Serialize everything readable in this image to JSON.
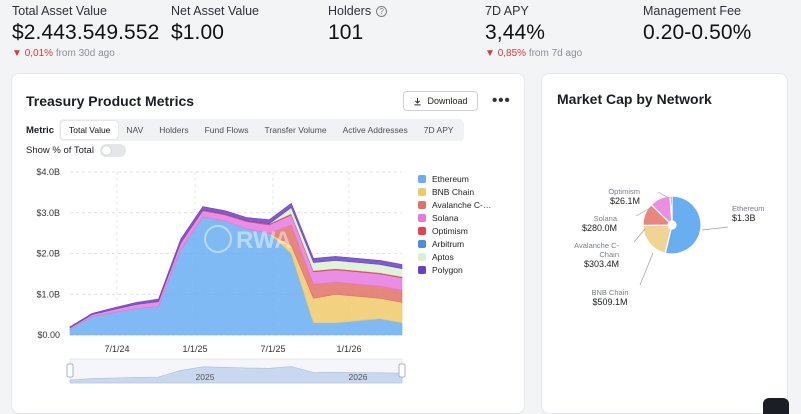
{
  "stats": [
    {
      "label": "Total Asset Value",
      "value": "$2.443.549.552",
      "change": "0,01%",
      "period": "from 30d ago"
    },
    {
      "label": "Net Asset Value",
      "value": "$1.00"
    },
    {
      "label": "Holders",
      "value": "101",
      "info_icon": "info-icon"
    },
    {
      "label": "7D APY",
      "value": "3,44%",
      "change": "0,85%",
      "period": "from 7d ago"
    },
    {
      "label": "Management Fee",
      "value": "0.20-0.50%"
    }
  ],
  "metrics_card": {
    "title": "Treasury Product Metrics",
    "download_label": "Download",
    "more_label": "•••",
    "metric_label": "Metric",
    "tabs": [
      "Total Value",
      "NAV",
      "Holders",
      "Fund Flows",
      "Transfer Volume",
      "Active Addresses",
      "7D APY"
    ],
    "active_tab": "Total Value",
    "toggle_label": "Show % of Total",
    "toggle_on": false,
    "watermark": "RWA"
  },
  "network_card": {
    "title": "Market Cap by Network"
  },
  "colors": {
    "negative": "#d93a3a",
    "accent_blue": "#6aaef2"
  },
  "chart_data": [
    {
      "type": "area",
      "stacked": true,
      "y_ticks": [
        "$0.00",
        "$1.0B",
        "$2.0B",
        "$3.0B",
        "$4.0B"
      ],
      "ylim": [
        0,
        4
      ],
      "x_ticks": [
        "7/1/24",
        "1/1/25",
        "7/1/25",
        "1/1/26"
      ],
      "range_labels": [
        "2025",
        "2026"
      ],
      "legend_position": "right",
      "x": [
        "2024-01",
        "2024-04",
        "2024-07",
        "2024-10",
        "2025-01",
        "2025-02",
        "2025-03",
        "2025-05",
        "2025-07",
        "2025-09",
        "2025-10",
        "2025-11",
        "2025-12",
        "2026-01",
        "2026-02",
        "2026-03"
      ],
      "series": [
        {
          "name": "Ethereum",
          "color": "#6aaef2",
          "values": [
            0.15,
            0.45,
            0.55,
            0.65,
            0.7,
            2.1,
            2.9,
            2.8,
            2.6,
            2.5,
            2.0,
            0.3,
            0.3,
            0.35,
            0.4,
            0.3
          ]
        },
        {
          "name": "BNB Chain",
          "color": "#f0c96b",
          "values": [
            0,
            0,
            0,
            0,
            0,
            0,
            0,
            0,
            0,
            0,
            0.2,
            0.6,
            0.7,
            0.6,
            0.5,
            0.5
          ]
        },
        {
          "name": "Avalanche C-Chain",
          "color": "#e07266",
          "values": [
            0,
            0,
            0,
            0,
            0,
            0,
            0,
            0,
            0,
            0,
            0.5,
            0.35,
            0.3,
            0.3,
            0.3,
            0.3
          ]
        },
        {
          "name": "Solana",
          "color": "#e679e0",
          "values": [
            0.03,
            0.05,
            0.08,
            0.1,
            0.12,
            0.15,
            0.15,
            0.15,
            0.18,
            0.2,
            0.25,
            0.3,
            0.3,
            0.3,
            0.3,
            0.3
          ]
        },
        {
          "name": "Optimism",
          "color": "#e8414b",
          "values": [
            0,
            0,
            0,
            0,
            0,
            0.02,
            0.02,
            0.02,
            0.02,
            0.03,
            0.03,
            0.03,
            0.03,
            0.03,
            0.03,
            0.03
          ]
        },
        {
          "name": "Arbitrum",
          "color": "#4c8fd9",
          "values": [
            0,
            0,
            0,
            0,
            0,
            0,
            0,
            0,
            0,
            0,
            0,
            0,
            0,
            0,
            0,
            0
          ]
        },
        {
          "name": "Aptos",
          "color": "#d8f2cf",
          "values": [
            0,
            0,
            0,
            0,
            0,
            0,
            0,
            0,
            0,
            0,
            0.15,
            0.2,
            0.2,
            0.2,
            0.2,
            0.2
          ]
        },
        {
          "name": "Polygon",
          "color": "#6a3fc7",
          "values": [
            0.02,
            0.03,
            0.04,
            0.05,
            0.06,
            0.08,
            0.08,
            0.08,
            0.08,
            0.1,
            0.1,
            0.1,
            0.1,
            0.1,
            0.1,
            0.1
          ]
        }
      ]
    },
    {
      "type": "pie",
      "donut": true,
      "slices": [
        {
          "name": "Ethereum",
          "label": "Ethereum",
          "value_label": "$1.3B",
          "value": 1300,
          "color": "#6aaef2"
        },
        {
          "name": "BNB Chain",
          "label": "BNB Chain",
          "value_label": "$509.1M",
          "value": 509.1,
          "color": "#f0d493"
        },
        {
          "name": "Avalanche C-Chain",
          "label": "Avalanche C-Chain",
          "value_label": "$303.4M",
          "value": 303.4,
          "color": "#e8877d"
        },
        {
          "name": "Solana",
          "label": "Solana",
          "value_label": "$280.0M",
          "value": 280.0,
          "color": "#ec8fe4"
        },
        {
          "name": "Optimism",
          "label": "Optimism",
          "value_label": "$26.1M",
          "value": 26.1,
          "color": "#e8414b"
        }
      ]
    }
  ]
}
